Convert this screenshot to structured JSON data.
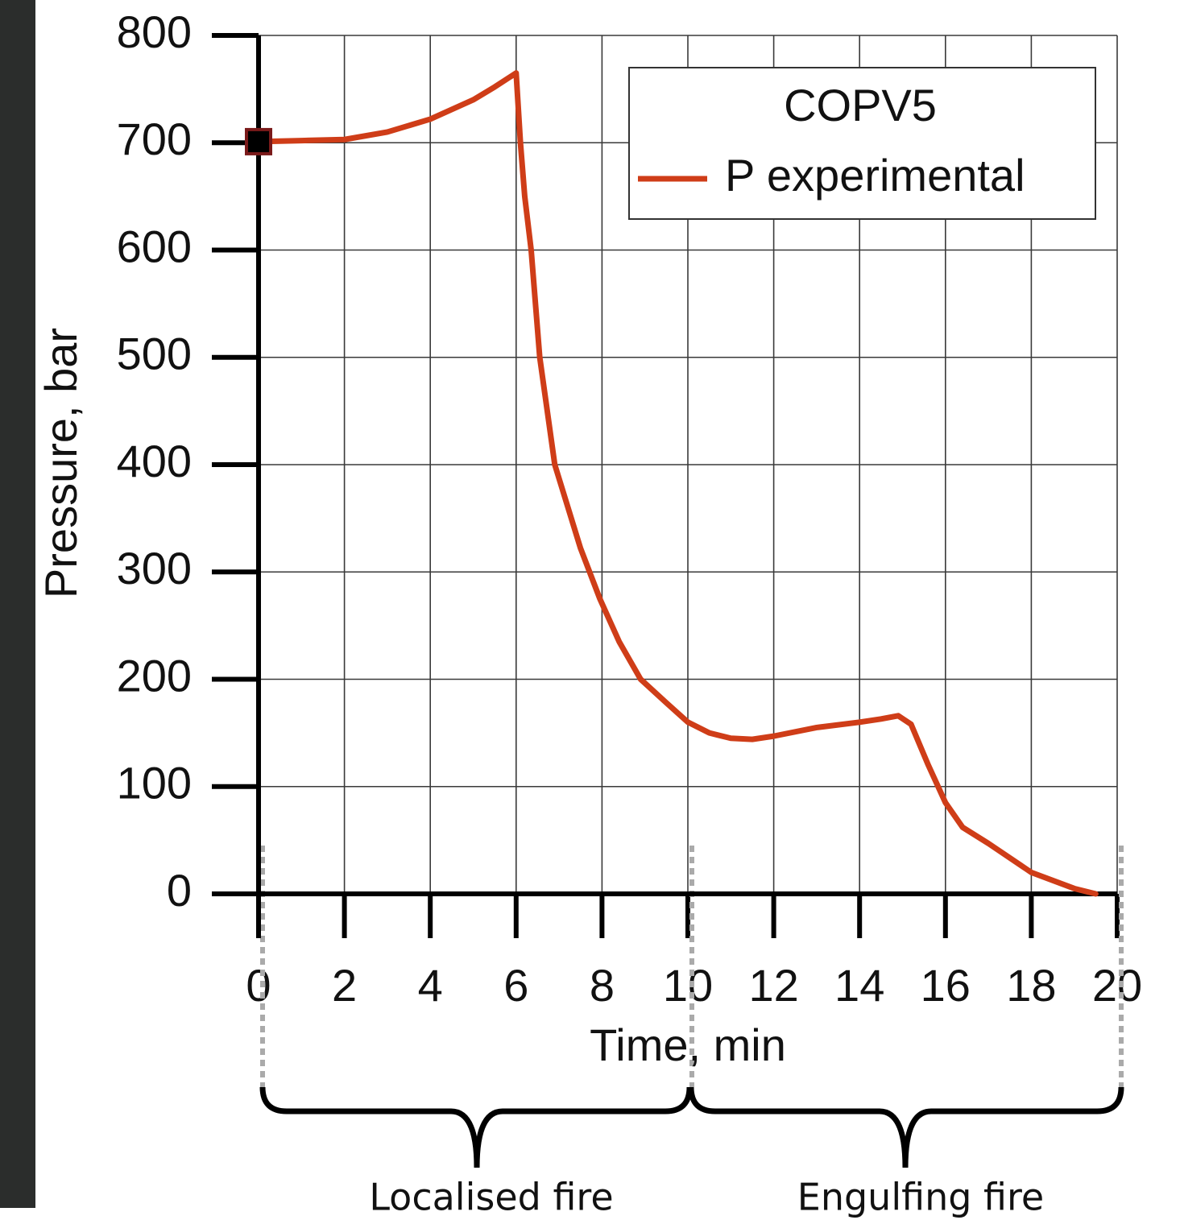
{
  "chart_data": {
    "type": "line",
    "xlabel": "Time, min",
    "ylabel": "Pressure, bar",
    "legend_title": "COPV5",
    "legend_position": "upper right",
    "x": [
      0,
      1,
      2,
      3,
      4,
      5,
      5.5,
      6,
      6.1,
      6.2,
      6.35,
      6.55,
      6.9,
      7.5,
      7.95,
      8.4,
      8.9,
      9.5,
      10,
      10.5,
      11,
      11.5,
      12,
      13,
      14,
      14.5,
      14.9,
      15.2,
      15.6,
      16,
      16.4,
      17,
      18,
      19,
      19.5
    ],
    "series": [
      {
        "name": "P experimental",
        "color": "#cf3d18",
        "values": [
          701,
          702,
          703,
          710,
          722,
          740,
          752,
          765,
          700,
          650,
          600,
          500,
          400,
          322,
          275,
          235,
          200,
          178,
          160,
          150,
          145,
          144,
          147,
          155,
          160,
          163,
          166,
          158,
          120,
          85,
          62,
          47,
          20,
          5,
          0
        ]
      }
    ],
    "start_marker_color": "#000000",
    "xlim": [
      0,
      20
    ],
    "xticks": [
      0,
      2,
      4,
      6,
      8,
      10,
      12,
      14,
      16,
      18,
      20
    ],
    "ylim": [
      0,
      800
    ],
    "yticks": [
      0,
      100,
      200,
      300,
      400,
      500,
      600,
      700,
      800
    ],
    "grid": true,
    "annotations": [
      "Localised fire",
      "Engulfing fire"
    ]
  }
}
